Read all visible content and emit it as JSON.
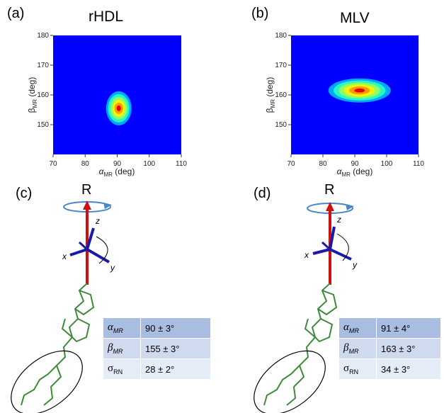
{
  "panels": {
    "a": {
      "label": "(a)",
      "title": "rHDL"
    },
    "b": {
      "label": "(b)",
      "title": "MLV"
    },
    "c": {
      "label": "(c)",
      "axis": "R"
    },
    "d": {
      "label": "(d)",
      "axis": "R"
    }
  },
  "axes_text": {
    "x": "x",
    "y": "y",
    "z": "z"
  },
  "chart_data": [
    {
      "type": "heatmap",
      "title": "rHDL",
      "xlabel": "αMR (deg)",
      "ylabel": "βMR (deg)",
      "xlim": [
        70,
        110
      ],
      "ylim": [
        140,
        180
      ],
      "xticks": [
        70,
        80,
        90,
        100,
        110
      ],
      "yticks": [
        150,
        160,
        170,
        180
      ],
      "peak": {
        "x": 90.5,
        "y": 155.5
      },
      "colors": [
        "#0000ff",
        "#00a7ff",
        "#27f7c5",
        "#8cff6a",
        "#f2f500",
        "#ff9a00",
        "#e00000"
      ]
    },
    {
      "type": "heatmap",
      "title": "MLV",
      "xlabel": "αMR (deg)",
      "ylabel": "βMR (deg)",
      "xlim": [
        70,
        110
      ],
      "ylim": [
        140,
        180
      ],
      "xticks": [
        70,
        80,
        90,
        100,
        110
      ],
      "yticks": [
        150,
        160,
        170,
        180
      ],
      "peak": {
        "x": 91.5,
        "y": 161.5
      },
      "colors": [
        "#0000ff",
        "#00a7ff",
        "#27f7c5",
        "#8cff6a",
        "#f2f500",
        "#ff9a00",
        "#e00000"
      ]
    }
  ],
  "tables": {
    "c": [
      {
        "sym": "α",
        "sub": "MR",
        "italic": true,
        "value": "90 ± 3°"
      },
      {
        "sym": "β",
        "sub": "MR",
        "italic": true,
        "value": "155 ± 3°"
      },
      {
        "sym": "σ",
        "sub": "RN",
        "italic": false,
        "value": "28 ± 2°"
      }
    ],
    "d": [
      {
        "sym": "α",
        "sub": "MR",
        "italic": true,
        "value": "91 ± 4°"
      },
      {
        "sym": "β",
        "sub": "MR",
        "italic": true,
        "value": "163 ± 3°"
      },
      {
        "sym": "σ",
        "sub": "RN",
        "italic": false,
        "value": "34 ± 3°"
      }
    ]
  }
}
